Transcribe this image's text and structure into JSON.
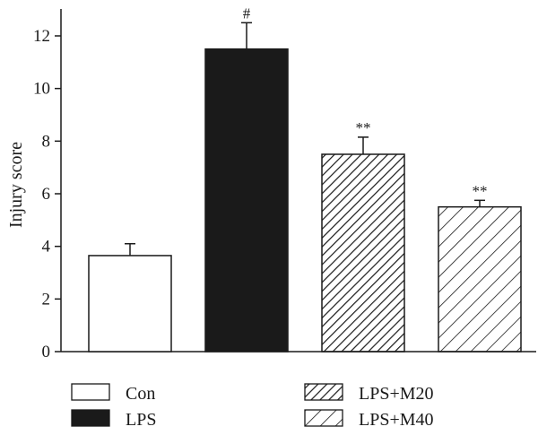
{
  "chart_data": {
    "type": "bar",
    "ylabel": "Injury score",
    "xlabel": "",
    "ylim": [
      0,
      13
    ],
    "yticks": [
      0,
      2,
      4,
      6,
      8,
      10,
      12
    ],
    "grid": false,
    "legend_position": "bottom",
    "bars": [
      {
        "name": "Con",
        "value": 3.65,
        "error": 0.45,
        "fill": "white",
        "annotation": ""
      },
      {
        "name": "LPS",
        "value": 11.5,
        "error": 1.0,
        "fill": "black",
        "annotation": "#"
      },
      {
        "name": "LPS+M20",
        "value": 7.5,
        "error": 0.65,
        "fill": "dense-hatch",
        "annotation": "**"
      },
      {
        "name": "LPS+M40",
        "value": 5.5,
        "error": 0.25,
        "fill": "sparse-hatch",
        "annotation": "**"
      }
    ]
  },
  "colors": {
    "ink": "#1a1a1a",
    "solid": "#1a1a1a",
    "background": "#ffffff"
  }
}
